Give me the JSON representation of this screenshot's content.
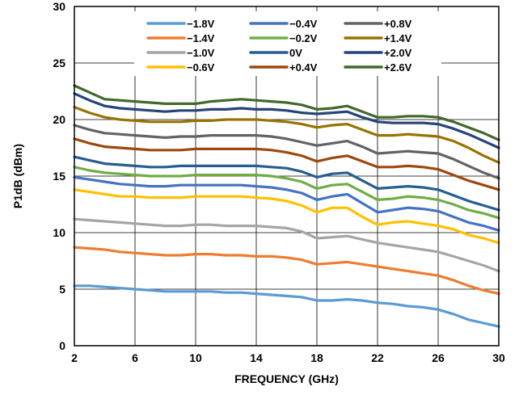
{
  "chart_data": {
    "type": "line",
    "title": "",
    "xlabel": "FREQUENCY (GHz)",
    "ylabel": "P1dB (dBm)",
    "xlim": [
      2,
      30
    ],
    "ylim": [
      0,
      30
    ],
    "xticks": [
      2,
      6,
      10,
      14,
      18,
      22,
      26,
      30
    ],
    "yticks": [
      0,
      5,
      10,
      15,
      20,
      25,
      30
    ],
    "grid": true,
    "legend_position": "top-center",
    "x": [
      2,
      3,
      4,
      5,
      6,
      7,
      8,
      9,
      10,
      11,
      12,
      13,
      14,
      15,
      16,
      17,
      18,
      19,
      20,
      21,
      22,
      23,
      24,
      25,
      26,
      27,
      28,
      29,
      30
    ],
    "series": [
      {
        "name": "−1.8V",
        "color": "#5b9bd5",
        "values": [
          5.3,
          5.3,
          5.2,
          5.1,
          5.0,
          4.9,
          4.8,
          4.8,
          4.8,
          4.8,
          4.7,
          4.7,
          4.6,
          4.5,
          4.4,
          4.3,
          4.0,
          4.0,
          4.1,
          4.0,
          3.8,
          3.7,
          3.5,
          3.4,
          3.2,
          2.8,
          2.3,
          2.0,
          1.7
        ]
      },
      {
        "name": "−1.4V",
        "color": "#ed7d31",
        "values": [
          8.7,
          8.6,
          8.5,
          8.3,
          8.2,
          8.1,
          8.0,
          8.0,
          8.1,
          8.1,
          8.0,
          8.0,
          7.9,
          7.9,
          7.8,
          7.6,
          7.2,
          7.3,
          7.4,
          7.2,
          7.0,
          6.8,
          6.6,
          6.4,
          6.2,
          5.8,
          5.3,
          4.9,
          4.6
        ]
      },
      {
        "name": "−1.0V",
        "color": "#a5a5a5",
        "values": [
          11.2,
          11.1,
          11.0,
          10.9,
          10.8,
          10.7,
          10.6,
          10.6,
          10.7,
          10.7,
          10.6,
          10.6,
          10.6,
          10.5,
          10.4,
          10.1,
          9.5,
          9.6,
          9.7,
          9.4,
          9.1,
          8.9,
          8.7,
          8.5,
          8.3,
          7.9,
          7.5,
          7.1,
          6.6
        ]
      },
      {
        "name": "−0.6V",
        "color": "#ffc000",
        "values": [
          13.8,
          13.6,
          13.4,
          13.2,
          13.2,
          13.1,
          13.1,
          13.1,
          13.2,
          13.2,
          13.2,
          13.2,
          13.1,
          13.0,
          12.8,
          12.4,
          11.8,
          12.2,
          12.2,
          11.4,
          10.7,
          10.9,
          11.0,
          10.8,
          10.6,
          10.3,
          9.8,
          9.5,
          9.1
        ]
      },
      {
        "name": "−0.4V",
        "color": "#4472c4",
        "values": [
          14.9,
          14.7,
          14.5,
          14.3,
          14.2,
          14.1,
          14.1,
          14.2,
          14.2,
          14.2,
          14.2,
          14.2,
          14.1,
          14.0,
          13.8,
          13.5,
          12.9,
          13.2,
          13.4,
          12.6,
          11.8,
          12.0,
          12.2,
          12.1,
          11.9,
          11.4,
          10.9,
          10.6,
          10.2
        ]
      },
      {
        "name": "−0.2V",
        "color": "#70ad47",
        "values": [
          15.8,
          15.5,
          15.3,
          15.2,
          15.1,
          15.0,
          15.0,
          15.0,
          15.1,
          15.1,
          15.1,
          15.1,
          15.1,
          15.0,
          14.8,
          14.5,
          13.9,
          14.2,
          14.3,
          13.6,
          12.9,
          13.0,
          13.2,
          13.1,
          12.9,
          12.5,
          12.0,
          11.7,
          11.3
        ]
      },
      {
        "name": "0V",
        "color": "#255e91",
        "values": [
          16.7,
          16.4,
          16.1,
          16.0,
          15.9,
          15.8,
          15.8,
          15.9,
          15.9,
          15.9,
          15.9,
          15.9,
          15.9,
          15.8,
          15.7,
          15.4,
          14.9,
          15.2,
          15.3,
          14.6,
          13.9,
          14.0,
          14.1,
          14.0,
          13.8,
          13.3,
          12.8,
          12.4,
          12.0
        ]
      },
      {
        "name": "+0.4V",
        "color": "#9e480e",
        "values": [
          18.3,
          17.9,
          17.6,
          17.5,
          17.4,
          17.3,
          17.3,
          17.3,
          17.4,
          17.4,
          17.4,
          17.4,
          17.4,
          17.3,
          17.1,
          16.8,
          16.3,
          16.6,
          16.8,
          16.3,
          15.8,
          15.8,
          15.9,
          15.8,
          15.6,
          15.1,
          14.6,
          14.2,
          13.8
        ]
      },
      {
        "name": "+0.8V",
        "color": "#636363",
        "values": [
          19.5,
          19.1,
          18.8,
          18.7,
          18.6,
          18.5,
          18.4,
          18.5,
          18.5,
          18.6,
          18.6,
          18.6,
          18.6,
          18.5,
          18.3,
          18.0,
          17.7,
          17.9,
          18.1,
          17.6,
          17.0,
          17.1,
          17.2,
          17.1,
          17.0,
          16.5,
          15.9,
          15.3,
          14.8
        ]
      },
      {
        "name": "+1.4V",
        "color": "#997300",
        "values": [
          21.1,
          20.6,
          20.2,
          20.0,
          19.9,
          19.8,
          19.8,
          19.8,
          19.9,
          19.9,
          20.0,
          20.0,
          20.0,
          19.9,
          19.8,
          19.6,
          19.3,
          19.5,
          19.6,
          19.1,
          18.6,
          18.6,
          18.7,
          18.6,
          18.5,
          18.1,
          17.5,
          16.8,
          16.2
        ]
      },
      {
        "name": "+2.0V",
        "color": "#264478",
        "values": [
          22.3,
          21.7,
          21.2,
          21.0,
          20.9,
          20.8,
          20.7,
          20.8,
          20.8,
          20.9,
          20.9,
          21.0,
          20.9,
          20.9,
          20.8,
          20.6,
          20.5,
          20.6,
          20.7,
          20.2,
          19.8,
          19.7,
          19.7,
          19.7,
          19.6,
          19.2,
          18.7,
          18.1,
          17.5
        ]
      },
      {
        "name": "+2.6V",
        "color": "#43682b",
        "values": [
          23.0,
          22.4,
          21.8,
          21.7,
          21.6,
          21.5,
          21.4,
          21.4,
          21.4,
          21.6,
          21.7,
          21.8,
          21.7,
          21.6,
          21.5,
          21.3,
          20.9,
          21.0,
          21.2,
          20.7,
          20.2,
          20.2,
          20.3,
          20.3,
          20.2,
          19.8,
          19.3,
          18.8,
          18.2
        ]
      }
    ]
  }
}
